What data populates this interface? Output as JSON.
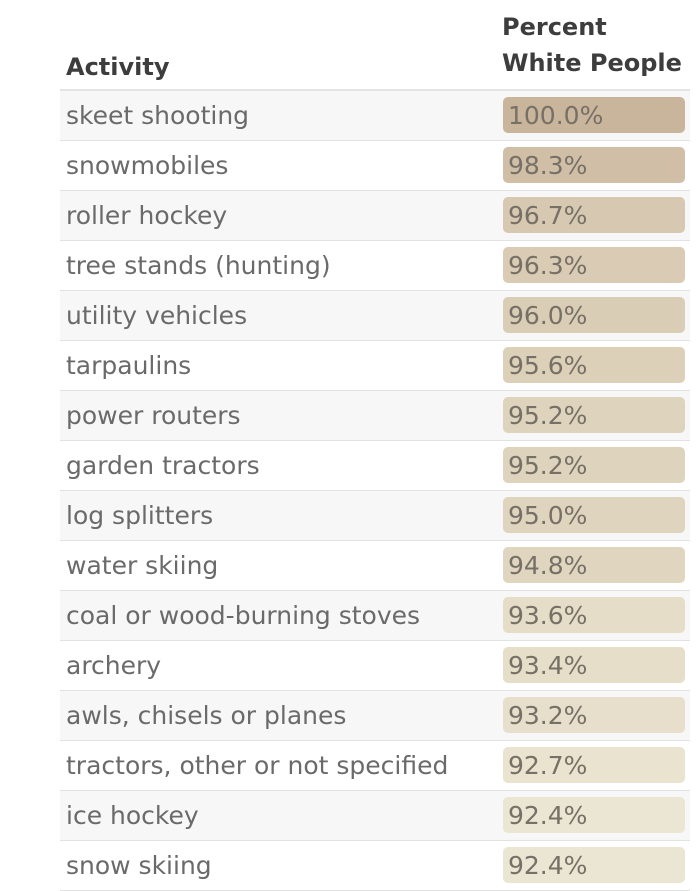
{
  "table": {
    "headers": {
      "activity": "Activity",
      "percent_line1": "Percent",
      "percent_line2": "White People"
    },
    "rows": [
      {
        "activity": "skeet shooting",
        "percent": "100.0%",
        "value": 100.0,
        "color": "#c9b59b"
      },
      {
        "activity": "snowmobiles",
        "percent": "98.3%",
        "value": 98.3,
        "color": "#d0bfa6"
      },
      {
        "activity": "roller hockey",
        "percent": "96.7%",
        "value": 96.7,
        "color": "#d7c8b1"
      },
      {
        "activity": "tree stands (hunting)",
        "percent": "96.3%",
        "value": 96.3,
        "color": "#d9cbb4"
      },
      {
        "activity": "utility vehicles",
        "percent": "96.0%",
        "value": 96.0,
        "color": "#dacdb6"
      },
      {
        "activity": "tarpaulins",
        "percent": "95.6%",
        "value": 95.6,
        "color": "#dcd0b9"
      },
      {
        "activity": "power routers",
        "percent": "95.2%",
        "value": 95.2,
        "color": "#ded3bc"
      },
      {
        "activity": "garden tractors",
        "percent": "95.2%",
        "value": 95.2,
        "color": "#ded3bc"
      },
      {
        "activity": "log splitters",
        "percent": "95.0%",
        "value": 95.0,
        "color": "#dfd4be"
      },
      {
        "activity": "water skiing",
        "percent": "94.8%",
        "value": 94.8,
        "color": "#e0d6c0"
      },
      {
        "activity": "coal or wood-burning stoves",
        "percent": "93.6%",
        "value": 93.6,
        "color": "#e5ddc8"
      },
      {
        "activity": "archery",
        "percent": "93.4%",
        "value": 93.4,
        "color": "#e6dec9"
      },
      {
        "activity": "awls, chisels or planes",
        "percent": "93.2%",
        "value": 93.2,
        "color": "#e7dfcb"
      },
      {
        "activity": "tractors, other or not specified",
        "percent": "92.7%",
        "value": 92.7,
        "color": "#e9e3cf"
      },
      {
        "activity": "ice hockey",
        "percent": "92.4%",
        "value": 92.4,
        "color": "#ebe6d3"
      },
      {
        "activity": "snow skiing",
        "percent": "92.4%",
        "value": 92.4,
        "color": "#ebe6d3"
      }
    ]
  },
  "chart_data": {
    "type": "table",
    "title": "",
    "columns": [
      "Activity",
      "Percent White People"
    ],
    "categories": [
      "skeet shooting",
      "snowmobiles",
      "roller hockey",
      "tree stands (hunting)",
      "utility vehicles",
      "tarpaulins",
      "power routers",
      "garden tractors",
      "log splitters",
      "water skiing",
      "coal or wood-burning stoves",
      "archery",
      "awls, chisels or planes",
      "tractors, other or not specified",
      "ice hockey",
      "snow skiing"
    ],
    "values": [
      100.0,
      98.3,
      96.7,
      96.3,
      96.0,
      95.6,
      95.2,
      95.2,
      95.0,
      94.8,
      93.6,
      93.4,
      93.2,
      92.7,
      92.4,
      92.4
    ],
    "heat_color_range": [
      "#ebe6d3",
      "#c9b59b"
    ]
  }
}
